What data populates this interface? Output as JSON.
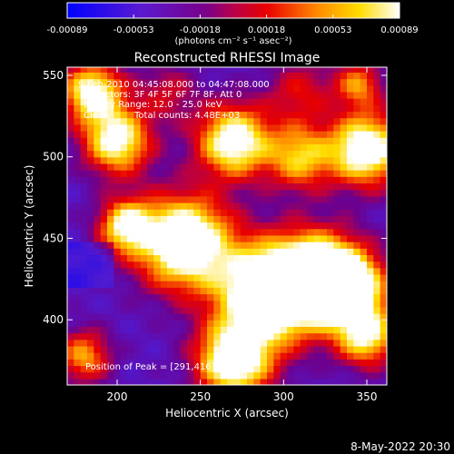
{
  "colorbar": {
    "ticks": [
      "-0.00089",
      "-0.00053",
      "-0.00018",
      "0.00018",
      "0.00053",
      "0.00089"
    ],
    "unit_label": "(photons cm⁻² s⁻¹ asec⁻²)"
  },
  "chart_data": {
    "type": "heatmap",
    "title": "Reconstructed RHESSI Image",
    "xlabel": "Heliocentric X (arcsec)",
    "ylabel": "Heliocentric Y (arcsec)",
    "xlim": [
      170,
      362
    ],
    "ylim": [
      360,
      555
    ],
    "xticks": [
      200,
      250,
      300,
      350
    ],
    "yticks": [
      400,
      450,
      500,
      550
    ],
    "vmin": -0.00089,
    "vmax": 0.00089,
    "colormap": "blue-purple-red-yellow-white",
    "peak": [
      291,
      416
    ]
  },
  "annotations": {
    "time_range": "9-Feb-2010 04:45:08.000 to 04:47:08.000",
    "detectors": "Detectors: 3F 4F 5F 6F 7F 8F, Att 0",
    "energy": "Energy Range: 12.0 - 25.0 keV",
    "algorithm": "Clean",
    "counts": "Total counts: 4.48E+03",
    "peak_position": "Position of Peak = [291,416]"
  },
  "footer": {
    "date": "8-May-2022 20:30"
  }
}
